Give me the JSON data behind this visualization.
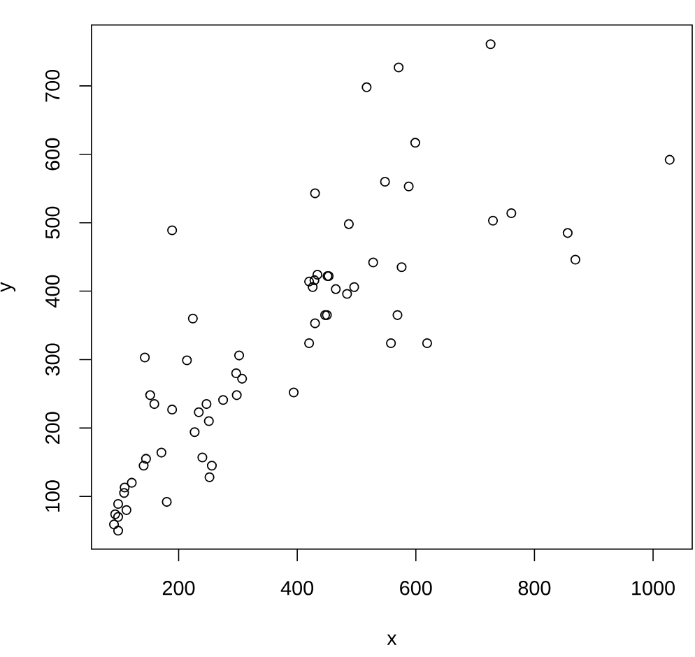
{
  "chart_data": {
    "type": "scatter",
    "xlabel": "x",
    "ylabel": "y",
    "x": [
      91,
      98,
      98,
      93,
      98,
      112,
      108,
      109,
      121,
      180,
      141,
      145,
      171,
      240,
      256,
      252,
      227,
      251,
      234,
      247,
      189,
      159,
      152,
      275,
      298,
      297,
      307,
      302,
      214,
      143,
      224,
      189,
      394,
      420,
      430,
      447,
      450,
      426,
      429,
      420,
      434,
      451,
      453,
      465,
      484,
      496,
      528,
      576,
      569,
      558,
      619,
      487,
      430,
      548,
      588,
      599,
      517,
      571,
      726,
      730,
      761,
      856,
      869,
      1028
    ],
    "values": [
      59,
      50,
      70,
      74,
      89,
      80,
      105,
      113,
      120,
      92,
      145,
      155,
      164,
      157,
      145,
      128,
      194,
      210,
      223,
      235,
      227,
      235,
      248,
      241,
      248,
      280,
      272,
      306,
      299,
      303,
      360,
      489,
      252,
      324,
      353,
      365,
      365,
      406,
      416,
      414,
      424,
      422,
      422,
      403,
      396,
      406,
      442,
      435,
      365,
      324,
      324,
      498,
      543,
      560,
      553,
      617,
      698,
      727,
      761,
      503,
      514,
      485,
      446,
      592
    ],
    "color": "#000000",
    "marker": "circle",
    "grid": false,
    "xlim": [
      53,
      1066
    ],
    "ylim": [
      23,
      789
    ],
    "xticks": [
      200,
      400,
      600,
      800,
      1000
    ],
    "yticks": [
      100,
      200,
      300,
      400,
      500,
      600,
      700
    ]
  }
}
